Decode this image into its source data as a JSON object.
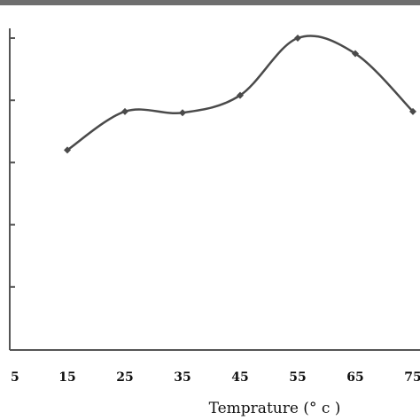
{
  "chart_data": {
    "type": "line",
    "title": "",
    "xlabel": "Temprature (°  c )",
    "ylabel": "",
    "x": [
      15,
      25,
      35,
      45,
      55,
      65,
      75
    ],
    "x_tick_labels": [
      "5",
      "15",
      "25",
      "35",
      "45",
      "55",
      "65",
      "75"
    ],
    "x_tick_values": [
      5,
      15,
      25,
      35,
      45,
      55,
      65,
      75
    ],
    "xlim": [
      5,
      75
    ],
    "ylim": [
      0,
      5
    ],
    "y_ticks": [
      1,
      2,
      3,
      4,
      5
    ],
    "series": [
      {
        "values": [
          3.2,
          3.82,
          3.8,
          4.08,
          5.0,
          4.75,
          3.82
        ]
      }
    ],
    "grid": false,
    "legend": "none",
    "colors": {
      "line": "#4a4a4a",
      "axis": "#555555",
      "frame_top": "#6e6e6e"
    }
  }
}
